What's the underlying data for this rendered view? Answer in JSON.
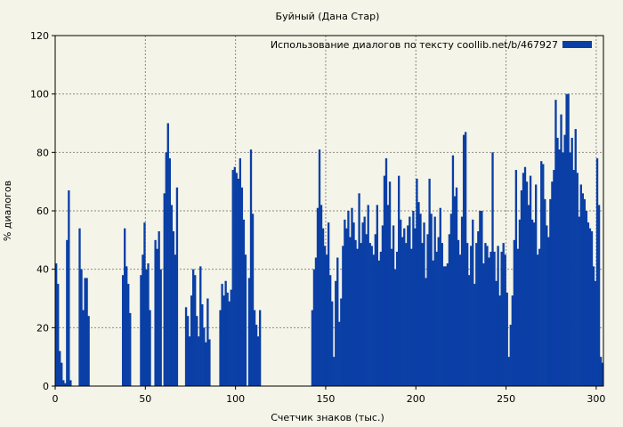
{
  "chart_data": {
    "type": "bar",
    "title": "Буйный (Дана Стар)",
    "xlabel": "Счетчик знаков (тыс.)",
    "ylabel": "% диалогов",
    "xlim": [
      0,
      304
    ],
    "ylim": [
      0,
      120
    ],
    "xticks": [
      0,
      50,
      100,
      150,
      200,
      250,
      300
    ],
    "yticks": [
      0,
      20,
      40,
      60,
      80,
      100,
      120
    ],
    "grid": true,
    "legend_position": "top-right",
    "series": [
      {
        "name": "Использование диалогов по тексту  coollib.net/b/467927",
        "color": "#0a3fa6",
        "points": [
          [
            0.5,
            42
          ],
          [
            1.5,
            35
          ],
          [
            2.5,
            12
          ],
          [
            3.5,
            8
          ],
          [
            4.5,
            2
          ],
          [
            5.5,
            1
          ],
          [
            6.5,
            50
          ],
          [
            7.5,
            67
          ],
          [
            8.5,
            2
          ],
          [
            13.5,
            54
          ],
          [
            14.5,
            40
          ],
          [
            15.5,
            26
          ],
          [
            16.5,
            37
          ],
          [
            17.5,
            37
          ],
          [
            18.5,
            24
          ],
          [
            37.5,
            38
          ],
          [
            38.5,
            54
          ],
          [
            39.5,
            41
          ],
          [
            40.5,
            35
          ],
          [
            41.5,
            25
          ],
          [
            47.5,
            38
          ],
          [
            48.5,
            45
          ],
          [
            49.5,
            56
          ],
          [
            50.5,
            40
          ],
          [
            51.5,
            42
          ],
          [
            52.5,
            26
          ],
          [
            55.5,
            50
          ],
          [
            56.5,
            47
          ],
          [
            57.5,
            53
          ],
          [
            58.5,
            40
          ],
          [
            60.5,
            66
          ],
          [
            61.5,
            80
          ],
          [
            62.5,
            90
          ],
          [
            63.5,
            78
          ],
          [
            64.5,
            62
          ],
          [
            65.5,
            53
          ],
          [
            66.5,
            45
          ],
          [
            67.5,
            68
          ],
          [
            72.5,
            27
          ],
          [
            73.5,
            24
          ],
          [
            74.5,
            17
          ],
          [
            75.5,
            31
          ],
          [
            76.5,
            40
          ],
          [
            77.5,
            38
          ],
          [
            78.5,
            24
          ],
          [
            79.5,
            17
          ],
          [
            80.5,
            41
          ],
          [
            81.5,
            28
          ],
          [
            82.5,
            20
          ],
          [
            83.5,
            15
          ],
          [
            84.5,
            30
          ],
          [
            85.5,
            16
          ],
          [
            91.5,
            26
          ],
          [
            92.5,
            35
          ],
          [
            93.5,
            31
          ],
          [
            94.5,
            36
          ],
          [
            95.5,
            32
          ],
          [
            96.5,
            29
          ],
          [
            97.5,
            33
          ],
          [
            98.5,
            74
          ],
          [
            99.5,
            75
          ],
          [
            100.5,
            73
          ],
          [
            101.5,
            71
          ],
          [
            102.5,
            78
          ],
          [
            103.5,
            68
          ],
          [
            104.5,
            57
          ],
          [
            105.5,
            45
          ],
          [
            107.5,
            37
          ],
          [
            108.5,
            81
          ],
          [
            109.5,
            59
          ],
          [
            110.5,
            26
          ],
          [
            111.5,
            21
          ],
          [
            112.5,
            17
          ],
          [
            113.5,
            26
          ],
          [
            142.5,
            26
          ],
          [
            143.5,
            40
          ],
          [
            144.5,
            44
          ],
          [
            145.5,
            61
          ],
          [
            146.5,
            81
          ],
          [
            147.5,
            62
          ],
          [
            148.5,
            54
          ],
          [
            149.5,
            48
          ],
          [
            150.5,
            45
          ],
          [
            151.5,
            56
          ],
          [
            152.5,
            38
          ],
          [
            153.5,
            29
          ],
          [
            154.5,
            10
          ],
          [
            155.5,
            36
          ],
          [
            156.5,
            44
          ],
          [
            157.5,
            22
          ],
          [
            158.5,
            30
          ],
          [
            159.5,
            48
          ],
          [
            160.5,
            57
          ],
          [
            161.5,
            54
          ],
          [
            162.5,
            60
          ],
          [
            163.5,
            51
          ],
          [
            164.5,
            61
          ],
          [
            165.5,
            56
          ],
          [
            166.5,
            50
          ],
          [
            167.5,
            47
          ],
          [
            168.5,
            66
          ],
          [
            169.5,
            49
          ],
          [
            170.5,
            56
          ],
          [
            171.5,
            58
          ],
          [
            172.5,
            52
          ],
          [
            173.5,
            62
          ],
          [
            174.5,
            49
          ],
          [
            175.5,
            48
          ],
          [
            176.5,
            45
          ],
          [
            177.5,
            52
          ],
          [
            178.5,
            62
          ],
          [
            179.5,
            43
          ],
          [
            180.5,
            46
          ],
          [
            181.5,
            55
          ],
          [
            182.5,
            72
          ],
          [
            183.5,
            78
          ],
          [
            184.5,
            62
          ],
          [
            185.5,
            70
          ],
          [
            186.5,
            47
          ],
          [
            187.5,
            55
          ],
          [
            188.5,
            40
          ],
          [
            189.5,
            46
          ],
          [
            190.5,
            72
          ],
          [
            191.5,
            57
          ],
          [
            192.5,
            51
          ],
          [
            193.5,
            54
          ],
          [
            194.5,
            49
          ],
          [
            195.5,
            55
          ],
          [
            196.5,
            58
          ],
          [
            197.5,
            47
          ],
          [
            198.5,
            60
          ],
          [
            199.5,
            54
          ],
          [
            200.5,
            71
          ],
          [
            201.5,
            63
          ],
          [
            202.5,
            59
          ],
          [
            203.5,
            49
          ],
          [
            204.5,
            56
          ],
          [
            205.5,
            37
          ],
          [
            206.5,
            52
          ],
          [
            207.5,
            71
          ],
          [
            208.5,
            59
          ],
          [
            209.5,
            43
          ],
          [
            210.5,
            58
          ],
          [
            211.5,
            46
          ],
          [
            212.5,
            51
          ],
          [
            213.5,
            61
          ],
          [
            214.5,
            49
          ],
          [
            215.5,
            41
          ],
          [
            216.5,
            41
          ],
          [
            217.5,
            42
          ],
          [
            218.5,
            52
          ],
          [
            219.5,
            59
          ],
          [
            220.5,
            79
          ],
          [
            221.5,
            65
          ],
          [
            222.5,
            68
          ],
          [
            223.5,
            50
          ],
          [
            224.5,
            45
          ],
          [
            225.5,
            58
          ],
          [
            226.5,
            86
          ],
          [
            227.5,
            87
          ],
          [
            228.5,
            49
          ],
          [
            229.5,
            38
          ],
          [
            230.5,
            48
          ],
          [
            231.5,
            57
          ],
          [
            232.5,
            35
          ],
          [
            233.5,
            49
          ],
          [
            234.5,
            53
          ],
          [
            235.5,
            60
          ],
          [
            236.5,
            60
          ],
          [
            237.5,
            42
          ],
          [
            238.5,
            49
          ],
          [
            239.5,
            48
          ],
          [
            240.5,
            44
          ],
          [
            241.5,
            46
          ],
          [
            242.5,
            80
          ],
          [
            243.5,
            46
          ],
          [
            244.5,
            36
          ],
          [
            245.5,
            48
          ],
          [
            246.5,
            31
          ],
          [
            247.5,
            46
          ],
          [
            248.5,
            49
          ],
          [
            249.5,
            45
          ],
          [
            250.5,
            32
          ],
          [
            251.5,
            10
          ],
          [
            252.5,
            21
          ],
          [
            253.5,
            31
          ],
          [
            254.5,
            50
          ],
          [
            255.5,
            74
          ],
          [
            256.5,
            47
          ],
          [
            257.5,
            57
          ],
          [
            258.5,
            67
          ],
          [
            259.5,
            73
          ],
          [
            260.5,
            75
          ],
          [
            261.5,
            70
          ],
          [
            262.5,
            62
          ],
          [
            263.5,
            72
          ],
          [
            264.5,
            57
          ],
          [
            265.5,
            56
          ],
          [
            266.5,
            69
          ],
          [
            267.5,
            45
          ],
          [
            268.5,
            47
          ],
          [
            269.5,
            77
          ],
          [
            270.5,
            76
          ],
          [
            271.5,
            64
          ],
          [
            272.5,
            55
          ],
          [
            273.5,
            51
          ],
          [
            274.5,
            64
          ],
          [
            275.5,
            70
          ],
          [
            276.5,
            74
          ],
          [
            277.5,
            98
          ],
          [
            278.5,
            85
          ],
          [
            279.5,
            81
          ],
          [
            280.5,
            93
          ],
          [
            281.5,
            80
          ],
          [
            282.5,
            86
          ],
          [
            283.5,
            100
          ],
          [
            284.5,
            100
          ],
          [
            285.5,
            80
          ],
          [
            286.5,
            85
          ],
          [
            287.5,
            74
          ],
          [
            288.5,
            88
          ],
          [
            289.5,
            73
          ],
          [
            290.5,
            58
          ],
          [
            291.5,
            69
          ],
          [
            292.5,
            66
          ],
          [
            293.5,
            64
          ],
          [
            294.5,
            60
          ],
          [
            295.5,
            56
          ],
          [
            296.5,
            54
          ],
          [
            297.5,
            53
          ],
          [
            298.5,
            41
          ],
          [
            299.5,
            36
          ],
          [
            300.5,
            78
          ],
          [
            301.5,
            62
          ],
          [
            302.5,
            10
          ],
          [
            303.5,
            8
          ]
        ]
      }
    ]
  }
}
